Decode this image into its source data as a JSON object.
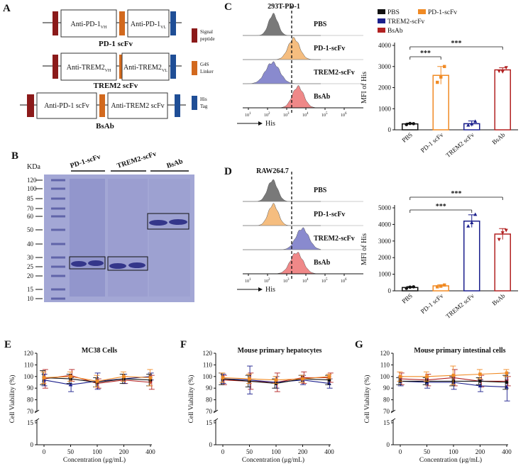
{
  "colors": {
    "pbs": "#111111",
    "pd1": "#F08A24",
    "trem2": "#1B1F8C",
    "bsab": "#B22222",
    "signal": "#8B1A1A",
    "linker": "#D2691E",
    "hisTag": "#1F4E96",
    "histPBS": "#6b6b6b",
    "histPD1": "#F5B672",
    "histTREM2": "#7D7EC9",
    "histBsAb": "#EE7C7C",
    "gel": "#A9ADD9",
    "gelBand": "#34368A"
  },
  "panelA": {
    "label": "A",
    "constructs": [
      {
        "name": "PD-1 scFv",
        "domains": [
          "Anti-PD-1",
          "Anti-PD-1"
        ],
        "subs": [
          "VH",
          "VL"
        ]
      },
      {
        "name": "TREM2 scFv",
        "domains": [
          "Anti-TREM2",
          "Anti-TREM2"
        ],
        "subs": [
          "VH",
          "VL"
        ]
      },
      {
        "name": "BsAb",
        "domains": [
          "Anti-PD-1 scFv",
          "Anti-TREM2 scFv"
        ],
        "subs": [
          "",
          ""
        ]
      }
    ],
    "legend": {
      "signal": [
        "Signal",
        "peptide"
      ],
      "linker": [
        "G4S",
        "Linker"
      ],
      "his": [
        "His",
        "Tag"
      ]
    }
  },
  "panelB": {
    "label": "B",
    "unit": "KDa",
    "markers": [
      "120",
      "100",
      "85",
      "70",
      "60",
      "50",
      "40",
      "30",
      "25",
      "20",
      "15",
      "10"
    ],
    "lanes": [
      "PD-1-scFv",
      "TREM2-scFv",
      "BsAb"
    ]
  },
  "panelC": {
    "label": "C",
    "title": "293T-PD-1",
    "rows": [
      "PBS",
      "PD-1-scFv",
      "TREM2-scFv",
      "BsAb"
    ],
    "axisLabel": "His",
    "ticks": [
      "10",
      "10",
      "10",
      "10",
      "10",
      "10"
    ],
    "exps": [
      "1",
      "2",
      "3",
      "4",
      "5",
      "6"
    ]
  },
  "panelD": {
    "label": "D",
    "title": "RAW264.7",
    "rows": [
      "PBS",
      "PD-1-scFv",
      "TREM2-scFv",
      "BsAb"
    ],
    "axisLabel": "His",
    "ticks": [
      "10",
      "10",
      "10",
      "10",
      "10",
      "10"
    ],
    "exps": [
      "1",
      "2",
      "3",
      "4",
      "5",
      "6"
    ]
  },
  "legendCD": [
    "PBS",
    "PD-1-scFv",
    "TREM2-scFv",
    "BsAb"
  ],
  "sig": "***",
  "chart_data": [
    {
      "id": "C-bar",
      "type": "bar",
      "ylabel": "MFI of His",
      "categories": [
        "PBS",
        "PD-1 scFv",
        "TREM2 scFv",
        "BsAb"
      ],
      "values": [
        280,
        2580,
        290,
        2840
      ],
      "errors": [
        40,
        420,
        130,
        100
      ],
      "points": [
        [
          250,
          300,
          290
        ],
        [
          2250,
          2500,
          3000
        ],
        [
          220,
          280,
          400
        ],
        [
          2780,
          2760,
          2950
        ]
      ],
      "ylim": [
        0,
        4000
      ],
      "yticks": [
        "0",
        "1000",
        "2000",
        "3000",
        "4000"
      ],
      "significance": [
        {
          "from": 0,
          "to": 1,
          "label": "***"
        },
        {
          "from": 0,
          "to": 3,
          "label": "***"
        }
      ]
    },
    {
      "id": "D-bar",
      "type": "bar",
      "ylabel": "MFI of His",
      "categories": [
        "PBS",
        "PD-1 scFv",
        "TREM2 scFv",
        "BsAb"
      ],
      "values": [
        200,
        300,
        4200,
        3420
      ],
      "errors": [
        60,
        70,
        380,
        330
      ],
      "points": [
        [
          150,
          220,
          240
        ],
        [
          240,
          280,
          350
        ],
        [
          3900,
          4100,
          4600
        ],
        [
          3100,
          3500,
          3650
        ]
      ],
      "ylim": [
        0,
        5000
      ],
      "yticks": [
        "0",
        "1000",
        "2000",
        "3000",
        "4000",
        "5000"
      ],
      "significance": [
        {
          "from": 0,
          "to": 2,
          "label": "***"
        },
        {
          "from": 0,
          "to": 3,
          "label": "***"
        }
      ]
    },
    {
      "id": "E",
      "type": "line",
      "panel": "E",
      "title": "MC38 Cells",
      "xlabel": "Concentration (μg/mL)",
      "ylabel": "Cell Viability (%)",
      "categories": [
        "0",
        "50",
        "100",
        "200",
        "400"
      ],
      "ylim": [
        70,
        120
      ],
      "yticks": [
        "70",
        "80",
        "90",
        "100",
        "110",
        "120"
      ],
      "lowTicks": [
        "0",
        "15"
      ],
      "series": [
        {
          "name": "PBS",
          "values": [
            99,
            98,
            95,
            98,
            97
          ],
          "errors": [
            6,
            4,
            4,
            4,
            5
          ]
        },
        {
          "name": "PD-1-scFv",
          "values": [
            99,
            100,
            96,
            100,
            99
          ],
          "errors": [
            5,
            4,
            5,
            4,
            7
          ]
        },
        {
          "name": "TREM2-scFv",
          "values": [
            97,
            93,
            96,
            98,
            100
          ],
          "errors": [
            5,
            6,
            7,
            4,
            3
          ]
        },
        {
          "name": "BsAb",
          "values": [
            98,
            101,
            94,
            97,
            95
          ],
          "errors": [
            8,
            5,
            4,
            3,
            6
          ]
        }
      ]
    },
    {
      "id": "F",
      "type": "line",
      "panel": "F",
      "title": "Mouse primary hepatocytes",
      "xlabel": "Concentration (μg/mL)",
      "ylabel": "Cell Viability (%)",
      "categories": [
        "0",
        "50",
        "100",
        "200",
        "400"
      ],
      "ylim": [
        70,
        120
      ],
      "yticks": [
        "70",
        "80",
        "90",
        "100",
        "110",
        "120"
      ],
      "lowTicks": [
        "0",
        "15"
      ],
      "series": [
        {
          "name": "PBS",
          "values": [
            98,
            96,
            94,
            98,
            97
          ],
          "errors": [
            5,
            5,
            4,
            3,
            4
          ]
        },
        {
          "name": "PD-1-scFv",
          "values": [
            99,
            98,
            97,
            98,
            100
          ],
          "errors": [
            4,
            4,
            3,
            3,
            2
          ]
        },
        {
          "name": "TREM2-scFv",
          "values": [
            98,
            97,
            95,
            97,
            94
          ],
          "errors": [
            4,
            12,
            5,
            4,
            4
          ]
        },
        {
          "name": "BsAb",
          "values": [
            97,
            96,
            95,
            99,
            99
          ],
          "errors": [
            4,
            7,
            8,
            5,
            4
          ]
        }
      ]
    },
    {
      "id": "G",
      "type": "line",
      "panel": "G",
      "title": "Mouse primary intestinal cells",
      "xlabel": "Concentration (μg/mL)",
      "ylabel": "Cell Viability (%)",
      "categories": [
        "0",
        "50",
        "100",
        "200",
        "400"
      ],
      "ylim": [
        70,
        120
      ],
      "yticks": [
        "70",
        "80",
        "90",
        "100",
        "110",
        "120"
      ],
      "lowTicks": [
        "0",
        "15"
      ],
      "series": [
        {
          "name": "PBS",
          "values": [
            96,
            96,
            96,
            96,
            95
          ],
          "errors": [
            3,
            3,
            4,
            3,
            6
          ]
        },
        {
          "name": "PD-1-scFv",
          "values": [
            100,
            100,
            101,
            102,
            103
          ],
          "errors": [
            4,
            4,
            8,
            4,
            3
          ]
        },
        {
          "name": "TREM2-scFv",
          "values": [
            96,
            95,
            95,
            92,
            91
          ],
          "errors": [
            4,
            5,
            6,
            5,
            12
          ]
        },
        {
          "name": "BsAb",
          "values": [
            98,
            97,
            99,
            96,
            96
          ],
          "errors": [
            5,
            5,
            7,
            5,
            4
          ]
        }
      ]
    }
  ]
}
